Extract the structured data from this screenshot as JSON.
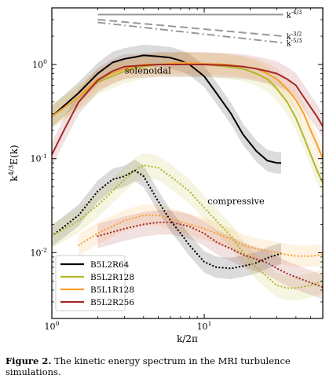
{
  "chart_data": {
    "type": "line",
    "xlabel": "k/2π",
    "ylabel": "k^4/3 E(k)",
    "xscale": "log",
    "yscale": "log",
    "xlim": [
      1,
      60
    ],
    "ylim": [
      0.002,
      4
    ],
    "x_ticks": [
      {
        "value": 1,
        "label": "10^0"
      },
      {
        "value": 10,
        "label": "10^1"
      }
    ],
    "y_ticks": [
      {
        "value": 0.01,
        "label": "10^-2"
      },
      {
        "value": 0.1,
        "label": "10^-1"
      },
      {
        "value": 1,
        "label": "10^0"
      }
    ],
    "legend_position": "lower-left",
    "annotations": [
      {
        "text": "solenoidal",
        "x": 3.0,
        "y": 0.8
      },
      {
        "text": "compressive",
        "x": 10.5,
        "y": 0.033
      }
    ],
    "reference_slopes": [
      {
        "label": "k^-4/3",
        "base": "k",
        "exponent": "-4/3",
        "style": "solid",
        "x": [
          2,
          33
        ],
        "y": [
          3.4,
          3.4
        ]
      },
      {
        "label": "k^-3/2",
        "base": "k",
        "exponent": "-3/2",
        "style": "dashed",
        "x": [
          2,
          33
        ],
        "y": [
          3.0,
          2.0
        ]
      },
      {
        "label": "k^-5/3",
        "base": "k",
        "exponent": "-5/3",
        "style": "dashdot",
        "x": [
          2,
          33
        ],
        "y": [
          2.8,
          1.7
        ]
      }
    ],
    "series": [
      {
        "name": "B5L2R64",
        "color": "#000000",
        "solenoidal": {
          "x": [
            1,
            1.5,
            2,
            2.5,
            3,
            3.5,
            4,
            5,
            6,
            7,
            8,
            10,
            12,
            15,
            18,
            22,
            26,
            30,
            32
          ],
          "y": [
            0.28,
            0.5,
            0.8,
            1.05,
            1.15,
            1.2,
            1.25,
            1.22,
            1.18,
            1.1,
            1.0,
            0.75,
            0.5,
            0.3,
            0.18,
            0.12,
            0.095,
            0.09,
            0.09
          ]
        },
        "compressive": {
          "x": [
            1,
            1.5,
            2,
            2.5,
            3,
            3.5,
            4,
            5,
            6,
            7,
            8,
            10,
            12,
            15,
            18,
            22,
            26,
            30,
            32
          ],
          "y": [
            0.015,
            0.025,
            0.045,
            0.06,
            0.065,
            0.075,
            0.065,
            0.035,
            0.022,
            0.016,
            0.012,
            0.008,
            0.007,
            0.0068,
            0.0072,
            0.0078,
            0.0088,
            0.0095,
            0.0098
          ]
        },
        "band_factor": 1.3
      },
      {
        "name": "B5L2R128",
        "color": "#b5b52b",
        "solenoidal": {
          "x": [
            1,
            1.5,
            2,
            3,
            4,
            5,
            7,
            10,
            14,
            18,
            22,
            26,
            30,
            35,
            40,
            45,
            50,
            55,
            60
          ],
          "y": [
            0.28,
            0.45,
            0.65,
            0.85,
            0.95,
            1.0,
            1.0,
            1.0,
            0.95,
            0.9,
            0.8,
            0.7,
            0.55,
            0.4,
            0.27,
            0.17,
            0.11,
            0.075,
            0.055
          ]
        },
        "compressive": {
          "x": [
            1,
            1.5,
            2,
            2.5,
            3,
            3.5,
            4,
            5,
            6,
            8,
            10,
            12,
            15,
            18,
            22,
            26,
            30,
            35,
            40,
            50,
            60
          ],
          "y": [
            0.015,
            0.022,
            0.032,
            0.045,
            0.06,
            0.075,
            0.085,
            0.08,
            0.065,
            0.045,
            0.03,
            0.022,
            0.015,
            0.01,
            0.007,
            0.0055,
            0.0045,
            0.0042,
            0.0042,
            0.0045,
            0.005
          ]
        },
        "band_factor": 1.35
      },
      {
        "name": "B5L1R128",
        "color": "#f5a030",
        "solenoidal": {
          "x": [
            1,
            1.5,
            2,
            3,
            4,
            5,
            7,
            10,
            14,
            18,
            22,
            26,
            30,
            35,
            40,
            45,
            50,
            55,
            60
          ],
          "y": [
            0.28,
            0.45,
            0.7,
            0.9,
            1.0,
            1.0,
            1.05,
            1.02,
            1.0,
            0.95,
            0.9,
            0.8,
            0.7,
            0.55,
            0.42,
            0.3,
            0.2,
            0.14,
            0.1
          ]
        },
        "compressive": {
          "x": [
            1.5,
            2,
            3,
            4,
            5,
            6,
            8,
            10,
            12,
            15,
            18,
            22,
            26,
            30,
            35,
            40,
            50,
            60
          ],
          "y": [
            0.012,
            0.016,
            0.022,
            0.025,
            0.025,
            0.023,
            0.02,
            0.018,
            0.016,
            0.014,
            0.012,
            0.011,
            0.0105,
            0.01,
            0.0095,
            0.0092,
            0.0092,
            0.0095
          ]
        },
        "band_factor": 1.3
      },
      {
        "name": "B5L2R256",
        "color": "#a52828",
        "solenoidal": {
          "x": [
            1,
            1.2,
            1.5,
            2,
            2.5,
            3,
            4,
            5,
            7,
            10,
            14,
            18,
            22,
            26,
            30,
            35,
            40,
            45,
            50,
            55,
            60
          ],
          "y": [
            0.11,
            0.2,
            0.4,
            0.68,
            0.85,
            0.95,
            0.98,
            1.0,
            1.0,
            1.0,
            0.98,
            0.95,
            0.9,
            0.85,
            0.8,
            0.7,
            0.6,
            0.45,
            0.35,
            0.28,
            0.22
          ]
        },
        "compressive": {
          "x": [
            2,
            3,
            4,
            5,
            6,
            7,
            8,
            10,
            12,
            15,
            18,
            22,
            26,
            30,
            35,
            40,
            50,
            60
          ],
          "y": [
            0.015,
            0.018,
            0.02,
            0.021,
            0.021,
            0.02,
            0.019,
            0.016,
            0.013,
            0.011,
            0.0095,
            0.0085,
            0.0078,
            0.0068,
            0.006,
            0.0055,
            0.0048,
            0.0043
          ]
        },
        "band_factor": 1.35
      }
    ]
  },
  "caption": {
    "label": "Figure 2.",
    "text": "The kinetic energy spectrum in the MRI turbulence simulations."
  }
}
